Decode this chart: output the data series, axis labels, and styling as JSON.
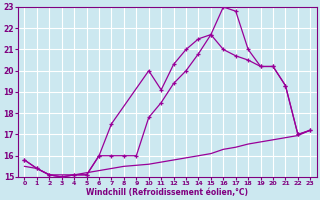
{
  "xlabel": "Windchill (Refroidissement éolien,°C)",
  "background_color": "#cce8f0",
  "grid_color": "#ffffff",
  "line_color": "#990099",
  "xlim": [
    -0.5,
    23.5
  ],
  "ylim": [
    15,
    23
  ],
  "xticks": [
    0,
    1,
    2,
    3,
    4,
    5,
    6,
    7,
    8,
    9,
    10,
    11,
    12,
    13,
    14,
    15,
    16,
    17,
    18,
    19,
    20,
    21,
    22,
    23
  ],
  "yticks": [
    15,
    16,
    17,
    18,
    19,
    20,
    21,
    22,
    23
  ],
  "line1_x": [
    0,
    1,
    2,
    3,
    4,
    5,
    6,
    7,
    10,
    11,
    12,
    13,
    14,
    15,
    16,
    17,
    18,
    19,
    20,
    21,
    22,
    23
  ],
  "line1_y": [
    15.8,
    15.4,
    15.1,
    15.0,
    15.1,
    15.1,
    16.0,
    17.5,
    20.0,
    19.1,
    20.3,
    21.0,
    21.5,
    21.7,
    23.0,
    22.8,
    21.0,
    20.2,
    20.2,
    19.3,
    17.0,
    17.2
  ],
  "line2_x": [
    0,
    1,
    2,
    3,
    4,
    5,
    6,
    7,
    8,
    9,
    10,
    11,
    12,
    13,
    14,
    15,
    16,
    17,
    18,
    19,
    20,
    21,
    22,
    23
  ],
  "line2_y": [
    15.8,
    15.4,
    15.1,
    15.0,
    15.1,
    15.1,
    16.0,
    16.0,
    16.0,
    16.0,
    17.8,
    18.5,
    19.4,
    20.0,
    20.8,
    21.7,
    21.0,
    20.7,
    20.5,
    20.2,
    20.2,
    19.3,
    17.0,
    17.2
  ],
  "line3_x": [
    0,
    1,
    2,
    3,
    4,
    5,
    6,
    7,
    8,
    9,
    10,
    11,
    12,
    13,
    14,
    15,
    16,
    17,
    18,
    19,
    20,
    21,
    22,
    23
  ],
  "line3_y": [
    15.5,
    15.4,
    15.1,
    15.1,
    15.1,
    15.2,
    15.3,
    15.4,
    15.5,
    15.55,
    15.6,
    15.7,
    15.8,
    15.9,
    16.0,
    16.1,
    16.3,
    16.4,
    16.55,
    16.65,
    16.75,
    16.85,
    16.95,
    17.2
  ]
}
